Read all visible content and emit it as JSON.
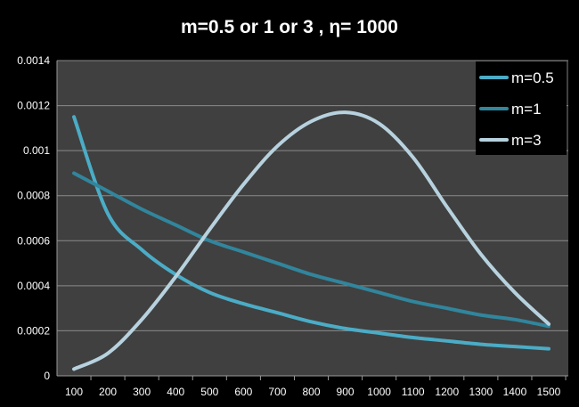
{
  "chart_data": {
    "type": "line",
    "title": "m=0.5 or 1 or 3 , η= 1000",
    "xlabel": "",
    "ylabel": "",
    "categories": [
      "100",
      "200",
      "300",
      "400",
      "500",
      "600",
      "700",
      "800",
      "900",
      "1000",
      "1100",
      "1200",
      "1300",
      "1400",
      "1500"
    ],
    "ylim": [
      0,
      0.0014
    ],
    "y_ticks": [
      "0",
      "0.0002",
      "0.0004",
      "0.0006",
      "0.0008",
      "0.001",
      "0.0012",
      "0.0014"
    ],
    "y_tick_values": [
      0,
      0.0002,
      0.0004,
      0.0006,
      0.0008,
      0.001,
      0.0012,
      0.0014
    ],
    "grid": true,
    "legend_position": "top-right",
    "plot_background": "#404040",
    "page_background": "#000000",
    "series": [
      {
        "name": "m=0.5",
        "color": "#4BACC6",
        "values": [
          0.00115,
          0.00072,
          0.00056,
          0.00045,
          0.00037,
          0.00032,
          0.00028,
          0.00024,
          0.00021,
          0.00019,
          0.00017,
          0.000155,
          0.00014,
          0.00013,
          0.00012
        ]
      },
      {
        "name": "m=1",
        "color": "#31859C",
        "values": [
          0.0009,
          0.00082,
          0.00074,
          0.00067,
          0.0006,
          0.00055,
          0.0005,
          0.00045,
          0.00041,
          0.00037,
          0.00033,
          0.0003,
          0.00027,
          0.00025,
          0.00022
        ]
      },
      {
        "name": "m=3",
        "color": "#B7D2DE",
        "values": [
          3e-05,
          0.0001,
          0.00025,
          0.00044,
          0.00065,
          0.00085,
          0.00102,
          0.00113,
          0.00117,
          0.00112,
          0.00097,
          0.00075,
          0.00054,
          0.00037,
          0.00023
        ]
      }
    ]
  }
}
